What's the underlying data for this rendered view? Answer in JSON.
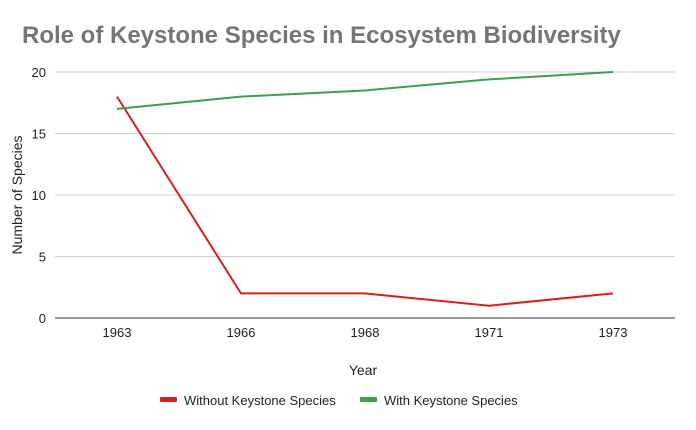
{
  "chart_data": {
    "type": "line",
    "title": "Role of Keystone Species in Ecosystem Biodiversity",
    "xlabel": "Year",
    "ylabel": "Number of Species",
    "categories": [
      "1963",
      "1966",
      "1968",
      "1971",
      "1973"
    ],
    "ylim": [
      0,
      20
    ],
    "yticks": [
      0,
      5,
      10,
      15,
      20
    ],
    "grid": true,
    "legend": "bottom",
    "series": [
      {
        "name": "Without Keystone Species",
        "color": "#d62020",
        "values": [
          18,
          2,
          2,
          1,
          2
        ]
      },
      {
        "name": "With Keystone Species",
        "color": "#3aa14f",
        "values": [
          17,
          18,
          18.5,
          19.4,
          20
        ]
      }
    ]
  }
}
